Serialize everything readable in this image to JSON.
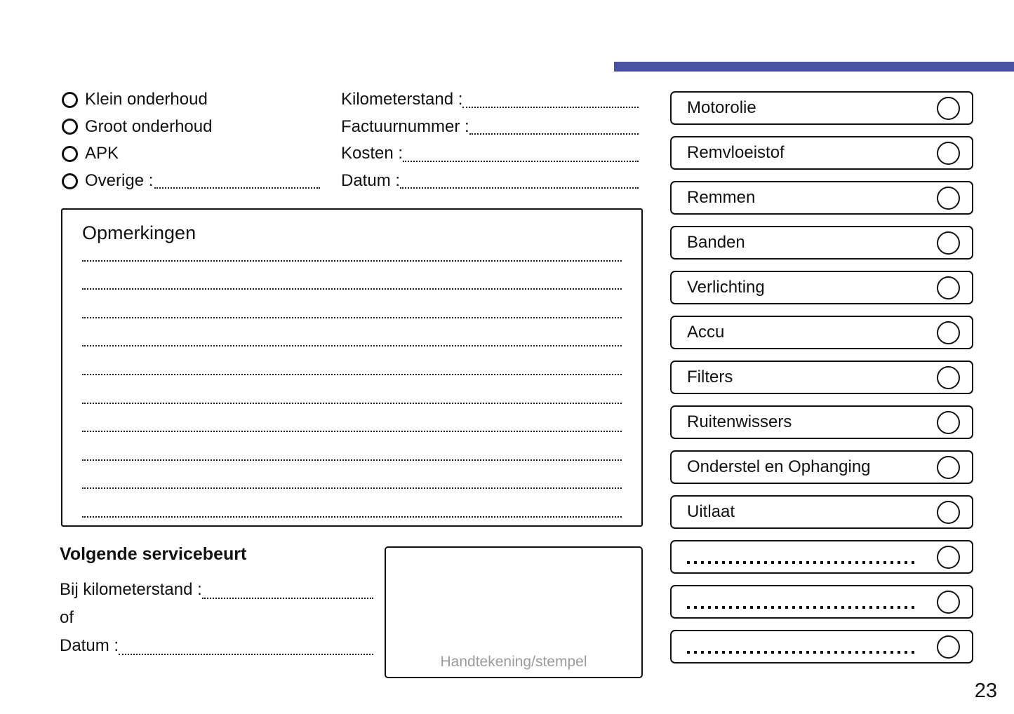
{
  "colors": {
    "accent_bar": "#4a53a3",
    "line_ink": "#111111",
    "signature_placeholder_text": "#9b9b9b"
  },
  "service_types": [
    "Klein onderhoud",
    "Groot onderhoud",
    "APK",
    "Overige :"
  ],
  "fields": [
    "Kilometerstand :",
    "Factuurnummer :",
    "Kosten :",
    "Datum :"
  ],
  "remarks": {
    "title": "Opmerkingen",
    "line_count": 10
  },
  "next_service": {
    "title": "Volgende servicebeurt",
    "km_label": "Bij kilometerstand :",
    "or_label": "of",
    "date_label": "Datum :"
  },
  "signature": {
    "placeholder": "Handtekening/stempel"
  },
  "checklist": [
    "Motorolie",
    "Remvloeistof",
    "Remmen",
    "Banden",
    "Verlichting",
    "Accu",
    "Filters",
    "Ruitenwissers",
    "Onderstel en Ophanging",
    "Uitlaat"
  ],
  "page": {
    "number": "23"
  }
}
